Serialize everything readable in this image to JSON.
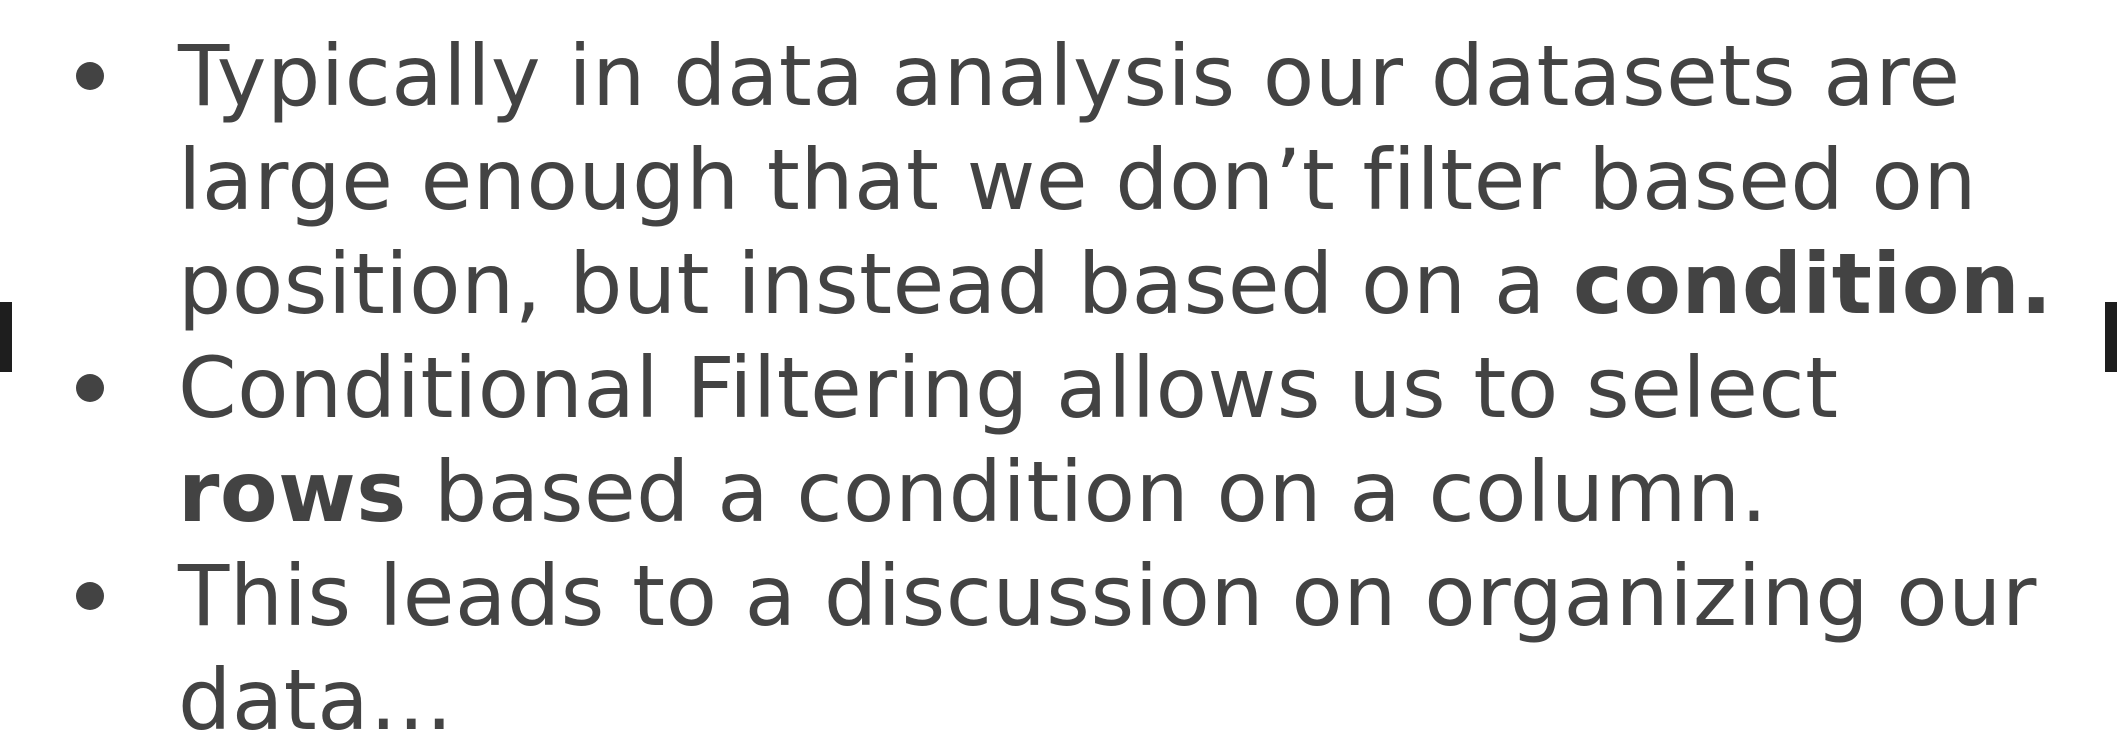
{
  "bullets": [
    {
      "lines": [
        [
          "Typically in data analysis our datasets are"
        ],
        [
          "large enough that we don’t filter based on"
        ],
        [
          "position, but instead based on a ",
          "condition."
        ]
      ]
    },
    {
      "lines": [
        [
          "Conditional Filtering allows us to select"
        ],
        [
          "rows",
          " based a condition on a column."
        ]
      ]
    },
    {
      "lines": [
        [
          "This leads to a discussion on organizing our"
        ],
        [
          "data…"
        ]
      ]
    }
  ]
}
